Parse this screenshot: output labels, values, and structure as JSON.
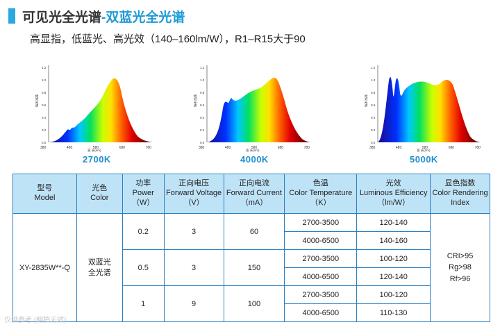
{
  "header": {
    "title_prefix": "可见光全光谱",
    "title_highlight": "-双蓝光全光谱",
    "subtitle": "高显指，低蓝光、高光效（140–160lm/W），R1–R15大于90"
  },
  "spectra": [
    {
      "label": "2700K",
      "y_ticks": [
        "1.2",
        "1.0",
        "0.8",
        "0.6",
        "0.4",
        "0.2",
        "0.0"
      ],
      "x_ticks": [
        "380",
        "480",
        "580",
        "680",
        "780"
      ],
      "y_axis": "相对光谱",
      "x_axis": "波 长(nm)"
    },
    {
      "label": "4000K",
      "y_ticks": [
        "1.2",
        "1.0",
        "0.8",
        "0.6",
        "0.4",
        "0.2",
        "0.0"
      ],
      "x_ticks": [
        "380",
        "480",
        "580",
        "680",
        "780"
      ],
      "y_axis": "相对光谱",
      "x_axis": "波 长(nm)"
    },
    {
      "label": "5000K",
      "y_ticks": [
        "1.2",
        "1.0",
        "0.8",
        "0.6",
        "0.4",
        "0.2",
        "0.0"
      ],
      "x_ticks": [
        "380",
        "480",
        "580",
        "680",
        "780"
      ],
      "y_axis": "相对光谱",
      "x_axis": "波 长(nm)"
    }
  ],
  "table": {
    "headers": [
      [
        "型号",
        "Model"
      ],
      [
        "光色",
        "Color"
      ],
      [
        "功率",
        "Power",
        "（W）"
      ],
      [
        "正向电压",
        "Forward Voltage",
        "（V）"
      ],
      [
        "正向电流",
        "Forward Current",
        "（mA）"
      ],
      [
        "色温",
        "Color Temperature",
        "（K）"
      ],
      [
        "光效",
        "Luminous Efficiency",
        "（lm/W）"
      ],
      [
        "显色指数",
        "Color Rendering",
        "Index"
      ]
    ],
    "model": "XY-2835W**-Q",
    "color": "双蓝光全光谱",
    "groups": [
      {
        "power": "0.2",
        "voltage": "3",
        "current": "60",
        "rows": [
          {
            "cct": "2700-3500",
            "eff": "120-140"
          },
          {
            "cct": "4000-6500",
            "eff": "140-160"
          }
        ]
      },
      {
        "power": "0.5",
        "voltage": "3",
        "current": "150",
        "rows": [
          {
            "cct": "2700-3500",
            "eff": "100-120"
          },
          {
            "cct": "4000-6500",
            "eff": "120-140"
          }
        ]
      },
      {
        "power": "1",
        "voltage": "9",
        "current": "100",
        "rows": [
          {
            "cct": "2700-3500",
            "eff": "100-120"
          },
          {
            "cct": "4000-6500",
            "eff": "110-130"
          }
        ]
      }
    ],
    "cri": [
      "CRI>95",
      "Rg>98",
      "Rf>96"
    ]
  },
  "watermark": "仅供参考 (翻拍无效)"
}
